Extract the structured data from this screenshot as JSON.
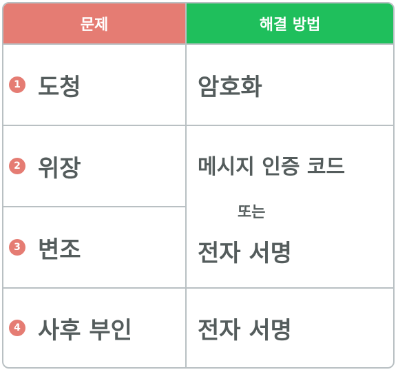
{
  "header": {
    "problem": "문제",
    "solution": "해결 방법"
  },
  "rows": [
    {
      "num": "1",
      "problem": "도청"
    },
    {
      "num": "2",
      "problem": "위장"
    },
    {
      "num": "3",
      "problem": "변조"
    },
    {
      "num": "4",
      "problem": "사후 부인"
    }
  ],
  "solutions": {
    "s1": "암호화",
    "s2_line1": "메시지 인증 코드",
    "s2_or": "또는",
    "s2_line2": "전자 서명",
    "s3": "전자 서명"
  },
  "colors": {
    "problem_header": "#e57c73",
    "solution_header": "#1fbf5c",
    "text": "#545c5c",
    "grid": "#b9c0c3"
  }
}
